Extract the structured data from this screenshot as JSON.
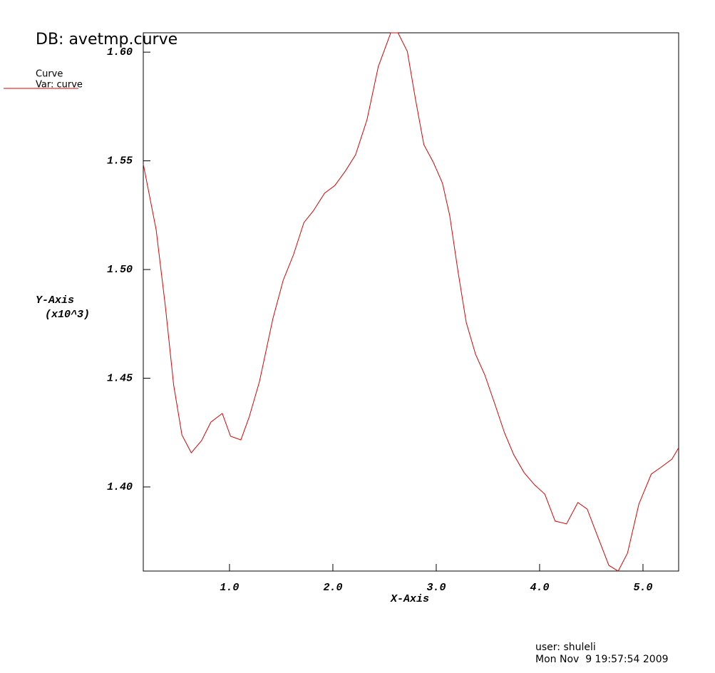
{
  "chart_data": {
    "type": "line",
    "title": "DB: avetmp.curve",
    "legend_title": "Curve",
    "x_label": "X-Axis",
    "y_label": "Y-Axis",
    "y_unit": "(x10^3)",
    "user": "user: shuleli",
    "timestamp": "Mon Nov  9 19:57:54 2009",
    "legend": "upper-left",
    "xlim": [
      0.166,
      5.345
    ],
    "ylim": [
      1.3613,
      1.6089
    ],
    "xticks": [
      {
        "value": 1,
        "label": "1.0"
      },
      {
        "value": 2,
        "label": "2.0"
      },
      {
        "value": 3,
        "label": "3.0"
      },
      {
        "value": 4,
        "label": "4.0"
      },
      {
        "value": 5,
        "label": "5.0"
      }
    ],
    "yticks": [
      {
        "value": 1.4,
        "label": "1.40"
      },
      {
        "value": 1.45,
        "label": "1.45"
      },
      {
        "value": 1.5,
        "label": "1.50"
      },
      {
        "value": 1.55,
        "label": "1.55"
      },
      {
        "value": 1.6,
        "label": "1.60"
      }
    ],
    "x": [
      0.166,
      0.29,
      0.38,
      0.46,
      0.54,
      0.63,
      0.73,
      0.82,
      0.93,
      1.01,
      1.11,
      1.19,
      1.29,
      1.42,
      1.52,
      1.62,
      1.72,
      1.81,
      1.92,
      2.02,
      2.12,
      2.22,
      2.33,
      2.44,
      2.56,
      2.63,
      2.72,
      2.8,
      2.88,
      2.97,
      3.06,
      3.13,
      3.21,
      3.29,
      3.38,
      3.47,
      3.57,
      3.66,
      3.75,
      3.85,
      3.95,
      4.05,
      4.15,
      4.26,
      4.37,
      4.46,
      4.56,
      4.67,
      4.76,
      4.85,
      4.96,
      5.08,
      5.17,
      5.28,
      5.345
    ],
    "series": [
      {
        "name": "Var: curve",
        "color": "#e00000",
        "values": [
          1.5485,
          1.5184,
          1.483,
          1.4469,
          1.4239,
          1.4157,
          1.4213,
          1.4298,
          1.4338,
          1.4233,
          1.4216,
          1.4321,
          1.4485,
          1.4774,
          1.4951,
          1.5069,
          1.5216,
          1.5269,
          1.5351,
          1.5387,
          1.5452,
          1.5528,
          1.5689,
          1.5934,
          1.6089,
          1.6089,
          1.6003,
          1.578,
          1.5574,
          1.5495,
          1.5397,
          1.5249,
          1.4993,
          1.4757,
          1.461,
          1.4515,
          1.4377,
          1.4249,
          1.4148,
          1.4066,
          1.401,
          1.3967,
          1.3843,
          1.383,
          1.3928,
          1.3898,
          1.3774,
          1.3639,
          1.3613,
          1.3695,
          1.3921,
          1.4059,
          1.4089,
          1.4128,
          1.418
        ]
      }
    ]
  }
}
